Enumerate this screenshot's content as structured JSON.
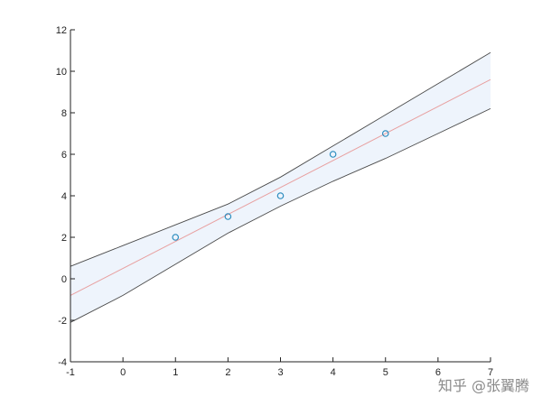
{
  "chart_data": {
    "type": "scatter",
    "title": "",
    "xlabel": "",
    "ylabel": "",
    "xlim": [
      -1,
      7
    ],
    "ylim": [
      -4,
      12
    ],
    "xticks": [
      -1,
      0,
      1,
      2,
      3,
      4,
      5,
      6,
      7
    ],
    "yticks": [
      -4,
      -2,
      0,
      2,
      4,
      6,
      8,
      10,
      12
    ],
    "grid": false,
    "points": [
      {
        "x": 1,
        "y": 2
      },
      {
        "x": 2,
        "y": 3
      },
      {
        "x": 3,
        "y": 4
      },
      {
        "x": 4,
        "y": 6
      },
      {
        "x": 5,
        "y": 7
      }
    ],
    "fit_line": {
      "x": [
        -1,
        7
      ],
      "y": [
        -0.8,
        9.6
      ]
    },
    "confidence_band": {
      "x": [
        -1,
        0,
        1,
        2,
        3,
        4,
        5,
        6,
        7
      ],
      "upper": [
        0.6,
        1.6,
        2.6,
        3.6,
        4.9,
        6.4,
        7.9,
        9.4,
        10.9
      ],
      "lower": [
        -2.1,
        -0.8,
        0.7,
        2.2,
        3.5,
        4.7,
        5.8,
        7.0,
        8.2
      ]
    },
    "colors": {
      "points": "#2b8cbe",
      "fit_line": "#e8a0a0",
      "band_fill": "#eef4fc",
      "band_edge": "#4a4a4a",
      "axis": "#222222"
    }
  },
  "watermark": "知乎 @张翼腾"
}
